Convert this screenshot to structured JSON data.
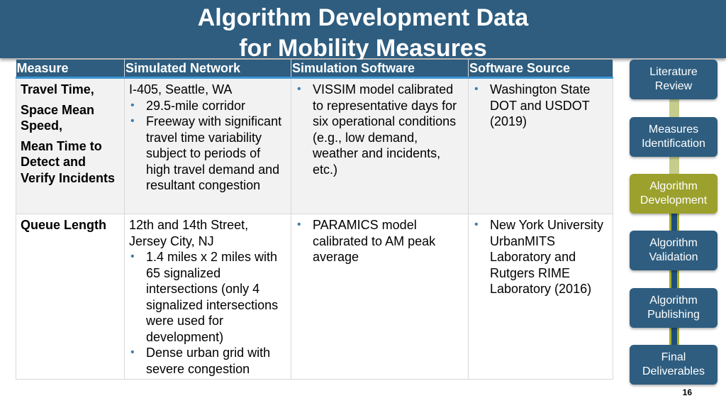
{
  "title": {
    "line1": "Algorithm Development Data",
    "line2": "for Mobility Measures"
  },
  "table": {
    "headers": [
      "Measure",
      "Simulated Network",
      "Simulation Software",
      "Software Source"
    ],
    "rows": [
      {
        "measure_lines": [
          "Travel Time,",
          "Space Mean Speed,",
          "Mean Time to Detect and Verify Incidents"
        ],
        "network_intro": "I-405, Seattle, WA",
        "network_bullets": [
          "29.5-mile corridor",
          "Freeway with significant travel time variability subject to periods of high travel demand and resultant congestion"
        ],
        "software": "VISSIM model calibrated to representative days for six operational conditions (e.g., low demand, weather and incidents, etc.)",
        "source": "Washington State DOT and USDOT (2019)"
      },
      {
        "measure_lines": [
          "Queue Length"
        ],
        "network_intro": "12th and 14th Street, Jersey City, NJ",
        "network_bullets": [
          "1.4 miles x 2 miles with 65 signalized intersections (only 4 signalized intersections were used for development)",
          "Dense urban grid with severe congestion"
        ],
        "software": "PARAMICS model calibrated to AM peak average",
        "source": "New York University UrbanMITS Laboratory and Rutgers RIME Laboratory (2016)"
      }
    ]
  },
  "process": {
    "steps": [
      {
        "label": "Literature Review",
        "active": false
      },
      {
        "label": "Measures Identification",
        "active": false
      },
      {
        "label": "Algorithm Development",
        "active": true
      },
      {
        "label": "Algorithm Validation",
        "active": false
      },
      {
        "label": "Algorithm Publishing",
        "active": false
      },
      {
        "label": "Final Deliverables",
        "active": false
      }
    ]
  },
  "page_number": "16",
  "bullet_glyph": "•",
  "colors": {
    "header": "#2e5d7f",
    "accent_blue": "#3f97d6",
    "active_step": "#9ca12d"
  }
}
